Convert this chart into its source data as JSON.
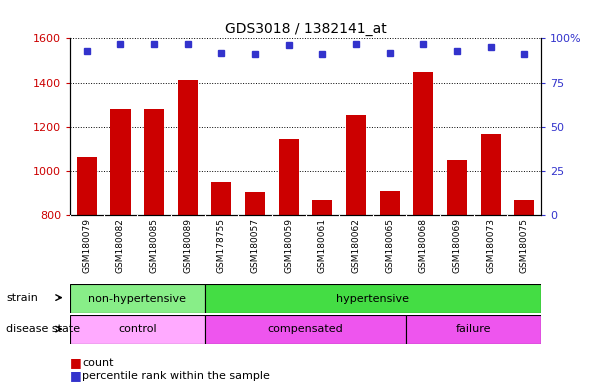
{
  "title": "GDS3018 / 1382141_at",
  "samples": [
    "GSM180079",
    "GSM180082",
    "GSM180085",
    "GSM180089",
    "GSM178755",
    "GSM180057",
    "GSM180059",
    "GSM180061",
    "GSM180062",
    "GSM180065",
    "GSM180068",
    "GSM180069",
    "GSM180073",
    "GSM180075"
  ],
  "counts": [
    1065,
    1280,
    1280,
    1410,
    950,
    905,
    1145,
    870,
    1255,
    910,
    1450,
    1050,
    1165,
    870
  ],
  "percentile_ranks": [
    93,
    97,
    97,
    97,
    92,
    91,
    96,
    91,
    97,
    92,
    97,
    93,
    95,
    91
  ],
  "ylim_left": [
    800,
    1600
  ],
  "ylim_right": [
    0,
    100
  ],
  "yticks_left": [
    800,
    1000,
    1200,
    1400,
    1600
  ],
  "yticks_right": [
    0,
    25,
    50,
    75,
    100
  ],
  "bar_color": "#cc0000",
  "dot_color": "#3333cc",
  "strain_groups": [
    {
      "label": "non-hypertensive",
      "start": 0,
      "end": 4,
      "color": "#88ee88"
    },
    {
      "label": "hypertensive",
      "start": 4,
      "end": 14,
      "color": "#44dd44"
    }
  ],
  "disease_groups": [
    {
      "label": "control",
      "start": 0,
      "end": 4,
      "color": "#ffaaff"
    },
    {
      "label": "compensated",
      "start": 4,
      "end": 10,
      "color": "#ee55ee"
    },
    {
      "label": "failure",
      "start": 10,
      "end": 14,
      "color": "#ee55ee"
    }
  ],
  "tick_color_left": "#cc0000",
  "tick_color_right": "#3333cc",
  "xtick_bg": "#d8d8d8"
}
